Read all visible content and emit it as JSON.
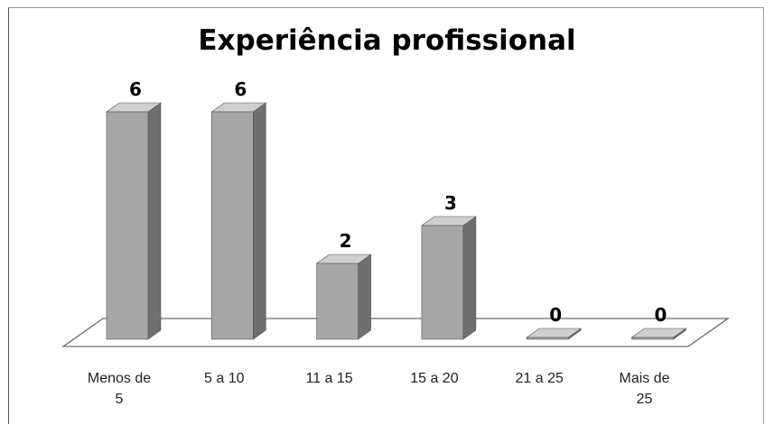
{
  "chart_data": {
    "type": "bar",
    "title": "Experiência profissional",
    "categories": [
      "Menos de 5",
      "5 a 10",
      "11 a 15",
      "15 a 20",
      "21 a 25",
      "Mais de 25"
    ],
    "category_lines": [
      [
        "Menos de",
        "5"
      ],
      [
        "5 a 10"
      ],
      [
        "11 a 15"
      ],
      [
        "15 a 20"
      ],
      [
        "21 a 25"
      ],
      [
        "Mais de",
        "25"
      ]
    ],
    "values": [
      6,
      6,
      2,
      3,
      0,
      0
    ],
    "xlabel": "",
    "ylabel": "",
    "ylim": [
      0,
      6
    ],
    "style": "3d-column",
    "grid": false,
    "legend": "none",
    "colors": {
      "front": "#a6a6a6",
      "side": "#6f6f6f",
      "top": "#cfcfcf",
      "outline": "#555555"
    }
  }
}
